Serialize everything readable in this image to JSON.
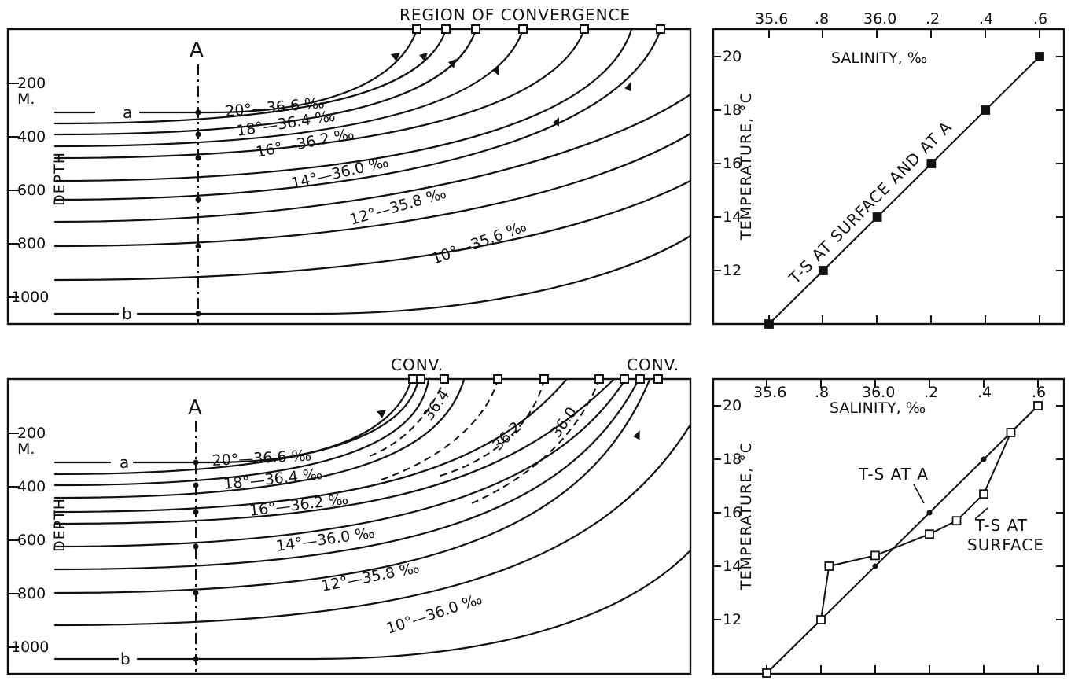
{
  "panels": {
    "top_left": {
      "region_label": "REGION OF CONVERGENCE",
      "section_label": "A",
      "depth_axis_label": "DEPTH",
      "depth_unit": "M.",
      "depth_ticks": [
        "200",
        "400",
        "600",
        "800",
        "1000"
      ],
      "line_a_label": "a",
      "line_b_label": "b",
      "curve_labels": [
        "20°—36.6 ‰",
        "18°—36.4 ‰",
        "16°—36.2 ‰",
        "14°—36.0 ‰",
        "12°—35.8 ‰",
        "10°—35.6 ‰"
      ]
    },
    "top_right": {
      "x_axis_label": "SALINITY, ‰",
      "y_axis_label": "TEMPERATURE, °C",
      "x_ticks": [
        "35.6",
        ".8",
        "36.0",
        ".2",
        ".4",
        ".6"
      ],
      "y_ticks": [
        "12",
        "14",
        "16",
        "18",
        "20"
      ],
      "annotation": "T-S AT SURFACE AND AT A"
    },
    "bottom_left": {
      "conv_label_left": "CONV.",
      "conv_label_right": "CONV.",
      "section_label": "A",
      "depth_axis_label": "DEPTH",
      "depth_unit": "M.",
      "depth_ticks": [
        "200",
        "400",
        "600",
        "800",
        "1000"
      ],
      "line_a_label": "a",
      "line_b_label": "b",
      "curve_labels": [
        "20°—36.6 ‰",
        "18°—36.4 ‰",
        "16°—36.2 ‰",
        "14°—36.0 ‰",
        "12°—35.8 ‰",
        "10°—36.0 ‰"
      ],
      "dashed_labels": [
        "36.4",
        "36.2",
        "36.0"
      ]
    },
    "bottom_right": {
      "x_axis_label": "SALINITY, ‰",
      "y_axis_label": "TEMPERATURE, °C",
      "x_ticks": [
        "35.6",
        ".8",
        "36.0",
        ".2",
        ".4",
        ".6"
      ],
      "y_ticks": [
        "12",
        "14",
        "16",
        "18",
        "20"
      ],
      "annotation_a": "T-S AT A",
      "annotation_surface_1": "T-S AT",
      "annotation_surface_2": "SURFACE"
    }
  },
  "chart_data": [
    {
      "type": "line",
      "panel": "top_right",
      "xlabel": "SALINITY, ‰",
      "ylabel": "TEMPERATURE, °C",
      "xlim": [
        35.6,
        36.6
      ],
      "ylim": [
        10,
        21
      ],
      "series": [
        {
          "name": "T-S AT SURFACE AND AT A",
          "x": [
            35.6,
            35.8,
            36.0,
            36.2,
            36.4,
            36.6
          ],
          "y": [
            10,
            12,
            14,
            16,
            18,
            20
          ]
        }
      ]
    },
    {
      "type": "line",
      "panel": "bottom_right",
      "xlabel": "SALINITY, ‰",
      "ylabel": "TEMPERATURE, °C",
      "xlim": [
        35.6,
        36.6
      ],
      "ylim": [
        10,
        21
      ],
      "series": [
        {
          "name": "T-S AT A",
          "x": [
            35.6,
            35.8,
            36.0,
            36.2,
            36.4,
            36.6
          ],
          "y": [
            10,
            12,
            14,
            16,
            18,
            20
          ]
        },
        {
          "name": "T-S AT SURFACE",
          "x": [
            35.6,
            35.8,
            35.83,
            36.0,
            36.2,
            36.3,
            36.4,
            36.5,
            36.6
          ],
          "y": [
            10,
            12,
            14,
            14.4,
            15.2,
            15.7,
            16.7,
            19,
            20
          ]
        }
      ]
    }
  ]
}
